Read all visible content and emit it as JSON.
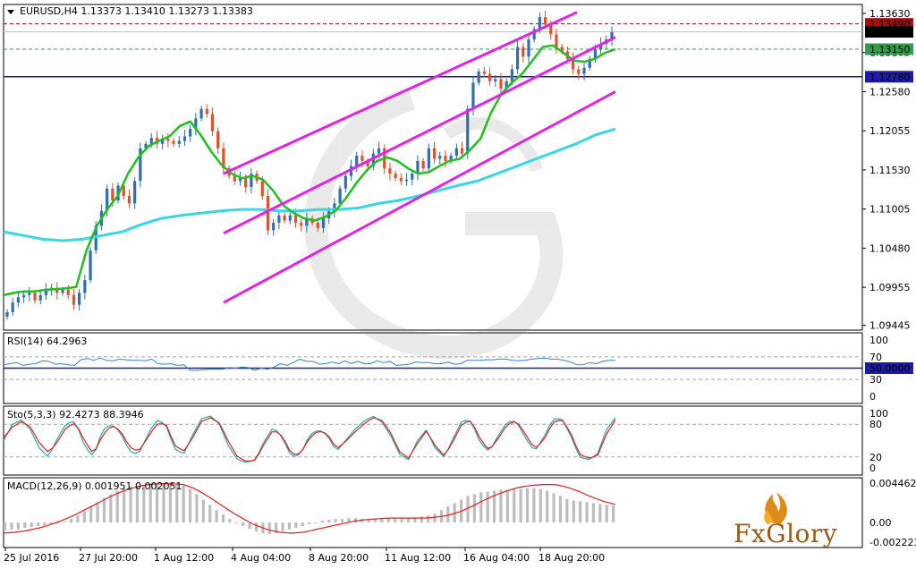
{
  "colors": {
    "background": "#ffffff",
    "frame": "#000000",
    "bull_candle": "#2f6fb0",
    "bear_candle": "#e0502a",
    "ma_fast": "#21c021",
    "ma_slow": "#3ad6e6",
    "channel": "#e025e0",
    "hline_support": "#1c1ca8",
    "hline_resistance": "#a01010",
    "hline_green": "#2e9e4e",
    "rsi_line": "#3a7fd8",
    "sto_main": "#2aa8a8",
    "sto_signal": "#e02020",
    "macd_hist": "#bdbdbd",
    "macd_signal": "#e02020",
    "logo_text": "#9a5a16"
  },
  "header": {
    "symbol_caption": "EURUSD,H4  1.13373 1.13410 1.13273 1.13383",
    "dropdown_icon": "triangle-down-icon"
  },
  "price_axis": {
    "ticks": [
      "1.13630",
      "1.13105",
      "1.12580",
      "1.12055",
      "1.11530",
      "1.11005",
      "1.10480",
      "1.09955",
      "1.09445"
    ],
    "tick_values": [
      1.1363,
      1.13105,
      1.1258,
      1.12055,
      1.1153,
      1.11005,
      1.1048,
      1.09955,
      1.09445
    ],
    "range": [
      1.0938,
      1.1375
    ],
    "tags": [
      {
        "text": "1.13490",
        "value": 1.1349,
        "color": "#a01010"
      },
      {
        "text": "1.13383",
        "value": 1.13383,
        "color": "#000000"
      },
      {
        "text": "1.13150",
        "value": 1.1315,
        "color": "#2e9e4e"
      },
      {
        "text": "1.12780",
        "value": 1.1278,
        "color": "#1c1ca8"
      }
    ]
  },
  "time_axis": {
    "labels": [
      "25 Jul 2016",
      "27 Jul 20:00",
      "1 Aug 12:00",
      "4 Aug 04:00",
      "8 Aug 20:00",
      "11 Aug 12:00",
      "16 Aug 04:00",
      "18 Aug 20:00"
    ]
  },
  "rsi": {
    "caption": "RSI(14) 64.2963",
    "axis_ticks": [
      "100",
      "70",
      "50.0000",
      "30",
      "0"
    ],
    "level_values": [
      100,
      70,
      50,
      30,
      0
    ]
  },
  "stochastic": {
    "caption": "Sto(5,3,3) 92.4273 88.3946",
    "axis_ticks": [
      "100",
      "80",
      "20",
      "0"
    ],
    "level_values": [
      100,
      80,
      20,
      0
    ]
  },
  "macd": {
    "caption": "MACD(12,26,9) 0.001951 0.002051",
    "axis_ticks": [
      "0.004462",
      "0.00",
      "-0.002223"
    ],
    "tick_values": [
      0.004462,
      0.0,
      -0.002223
    ]
  },
  "logo": {
    "text": "FxGlory",
    "icon": "flame-icon"
  },
  "chart_data": [
    {
      "type": "candlestick",
      "title": "EURUSD,H4",
      "ohlc_last": {
        "open": 1.13373,
        "high": 1.1341,
        "low": 1.13273,
        "close": 1.13383
      },
      "x_labels": [
        "25 Jul 2016",
        "27 Jul 20:00",
        "1 Aug 12:00",
        "4 Aug 04:00",
        "8 Aug 20:00",
        "11 Aug 12:00",
        "16 Aug 04:00",
        "18 Aug 20:00"
      ],
      "close_path": [
        1.0962,
        1.0975,
        1.0982,
        1.0985,
        1.0988,
        1.0978,
        1.0985,
        1.0992,
        1.0995,
        1.0988,
        1.0992,
        1.0985,
        1.0972,
        1.0988,
        1.1005,
        1.1045,
        1.1078,
        1.1098,
        1.1128,
        1.1112,
        1.1132,
        1.1118,
        1.1108,
        1.1138,
        1.1182,
        1.1188,
        1.1196,
        1.1188,
        1.1195,
        1.1192,
        1.1188,
        1.1192,
        1.1198,
        1.1208,
        1.1222,
        1.1235,
        1.1228,
        1.1205,
        1.1182,
        1.1155,
        1.1145,
        1.1138,
        1.1142,
        1.113,
        1.1148,
        1.1138,
        1.1118,
        1.1072,
        1.1082,
        1.1092,
        1.1085,
        1.1092,
        1.1082,
        1.1078,
        1.1088,
        1.1082,
        1.1075,
        1.1088,
        1.1098,
        1.1108,
        1.1128,
        1.1145,
        1.1158,
        1.1172,
        1.1165,
        1.1158,
        1.1175,
        1.1182,
        1.1155,
        1.1148,
        1.1142,
        1.1138,
        1.114,
        1.1148,
        1.1165,
        1.1155,
        1.1182,
        1.1168,
        1.1172,
        1.1165,
        1.1172,
        1.1182,
        1.1175,
        1.1235,
        1.127,
        1.1285,
        1.1282,
        1.1272,
        1.1275,
        1.1262,
        1.1272,
        1.1288,
        1.1318,
        1.1305,
        1.1328,
        1.1342,
        1.1358,
        1.1348,
        1.1335,
        1.1318,
        1.1312,
        1.1302,
        1.1288,
        1.1282,
        1.129,
        1.1302,
        1.1315,
        1.1322,
        1.1328,
        1.1338
      ],
      "series": [
        {
          "name": "MA fast",
          "values": [
            1.0985,
            1.0988,
            1.099,
            1.099,
            1.0992,
            1.0993,
            1.0994,
            1.0996,
            1.1045,
            1.1078,
            1.11,
            1.1118,
            1.1148,
            1.117,
            1.1185,
            1.1192,
            1.1198,
            1.1212,
            1.1218,
            1.12,
            1.1178,
            1.116,
            1.1148,
            1.1142,
            1.1145,
            1.114,
            1.1125,
            1.1105,
            1.1095,
            1.1088,
            1.1085,
            1.109,
            1.1098,
            1.1115,
            1.1135,
            1.1152,
            1.1165,
            1.117,
            1.1165,
            1.1155,
            1.1148,
            1.115,
            1.1158,
            1.1165,
            1.1168,
            1.118,
            1.1195,
            1.123,
            1.1255,
            1.127,
            1.1282,
            1.13,
            1.1318,
            1.132,
            1.131,
            1.13,
            1.1298,
            1.1302,
            1.131,
            1.1315
          ]
        },
        {
          "name": "MA slow",
          "values": [
            1.107,
            1.1065,
            1.106,
            1.1058,
            1.106,
            1.1065,
            1.107,
            1.108,
            1.1088,
            1.1092,
            1.1095,
            1.1098,
            1.11,
            1.11,
            1.1098,
            1.1098,
            1.11,
            1.11,
            1.1102,
            1.1108,
            1.1112,
            1.1118,
            1.1125,
            1.1132,
            1.1138,
            1.1148,
            1.1158,
            1.1168,
            1.1178,
            1.1188,
            1.12,
            1.1208
          ]
        }
      ],
      "channel": [
        {
          "name": "upper",
          "from": 1.1148,
          "to": 1.1388
        },
        {
          "name": "middle",
          "from": 1.1068,
          "to": 1.1331
        },
        {
          "name": "lower",
          "from": 1.0975,
          "to": 1.1258
        }
      ],
      "hlines": [
        1.1349,
        1.13383,
        1.1315,
        1.1278
      ]
    },
    {
      "type": "line",
      "title": "RSI(14) 64.2963",
      "ylim": [
        0,
        100
      ],
      "levels": [
        70,
        50,
        30
      ],
      "series": [
        {
          "name": "RSI(14)",
          "values": [
            56,
            58,
            60,
            55,
            57,
            58,
            63,
            62,
            57,
            58,
            56,
            55,
            65,
            67,
            64,
            68,
            64,
            63,
            66,
            65,
            64,
            64,
            63,
            66,
            58,
            57,
            58,
            55,
            56,
            46,
            46,
            47,
            48,
            48,
            48,
            51,
            50,
            52,
            51,
            46,
            50,
            48,
            52,
            58,
            55,
            60,
            66,
            62,
            62,
            57,
            58,
            61,
            58,
            63,
            58,
            62,
            58,
            58,
            63,
            60,
            62,
            55,
            56,
            57,
            61,
            60,
            60,
            58,
            58,
            61,
            57,
            58,
            64,
            64,
            64,
            65,
            65,
            66,
            66,
            64,
            63,
            64,
            66,
            67,
            68,
            66,
            66,
            64,
            61,
            56,
            56,
            60,
            58,
            62,
            64,
            64
          ]
        }
      ]
    },
    {
      "type": "line",
      "title": "Sto(5,3,3) 92.4273 88.3946",
      "ylim": [
        0,
        100
      ],
      "levels": [
        80,
        20
      ],
      "series": [
        {
          "name": "main",
          "values": [
            50,
            80,
            88,
            70,
            35,
            20,
            55,
            82,
            85,
            40,
            20,
            70,
            80,
            65,
            30,
            25,
            60,
            88,
            80,
            35,
            25,
            60,
            90,
            95,
            80,
            40,
            15,
            10,
            15,
            50,
            75,
            55,
            20,
            25,
            60,
            70,
            60,
            30,
            50,
            70,
            85,
            95,
            85,
            60,
            25,
            15,
            50,
            70,
            35,
            20,
            55,
            88,
            85,
            45,
            30,
            60,
            85,
            85,
            55,
            30,
            55,
            88,
            92,
            60,
            20,
            15,
            25,
            70,
            92
          ]
        },
        {
          "name": "signal",
          "values": [
            55,
            75,
            85,
            75,
            45,
            28,
            48,
            75,
            82,
            50,
            25,
            60,
            78,
            68,
            38,
            30,
            55,
            80,
            82,
            42,
            30,
            55,
            85,
            92,
            82,
            48,
            20,
            12,
            14,
            45,
            70,
            58,
            25,
            26,
            55,
            68,
            62,
            35,
            48,
            65,
            80,
            92,
            88,
            65,
            30,
            18,
            45,
            68,
            40,
            22,
            50,
            82,
            86,
            52,
            32,
            55,
            80,
            86,
            62,
            35,
            50,
            82,
            90,
            65,
            25,
            18,
            22,
            62,
            88
          ]
        }
      ]
    },
    {
      "type": "bar",
      "title": "MACD(12,26,9) 0.001951 0.002051",
      "ylim": [
        -0.002223,
        0.004462
      ],
      "series": [
        {
          "name": "histogram",
          "values": [
            -0.0009,
            -0.0008,
            -0.0008,
            -0.0006,
            -0.0005,
            -0.0004,
            -0.0003,
            -0.0002,
            -0.0001,
            0.0001,
            0.0004,
            0.0008,
            0.0013,
            0.0018,
            0.0023,
            0.0028,
            0.0032,
            0.0036,
            0.0039,
            0.0041,
            0.0042,
            0.0043,
            0.0044,
            0.0044,
            0.0044,
            0.0044,
            0.0043,
            0.0042,
            0.0038,
            0.0032,
            0.0026,
            0.002,
            0.0014,
            0.0009,
            0.0004,
            0.0,
            -0.0004,
            -0.0007,
            -0.001,
            -0.0012,
            -0.0013,
            -0.0012,
            -0.001,
            -0.0008,
            -0.0006,
            -0.0004,
            -0.0002,
            0.0,
            0.0002,
            0.0003,
            0.0004,
            0.0004,
            0.0005,
            0.0005,
            0.0004,
            0.0004,
            0.0004,
            0.0004,
            0.0005,
            0.0005,
            0.0005,
            0.0005,
            0.0006,
            0.0007,
            0.0008,
            0.001,
            0.0014,
            0.0018,
            0.0022,
            0.0026,
            0.003,
            0.0032,
            0.0034,
            0.0035,
            0.0036,
            0.0037,
            0.0037,
            0.0038,
            0.0038,
            0.0039,
            0.0039,
            0.0038,
            0.0036,
            0.0033,
            0.003,
            0.0027,
            0.0025,
            0.0024,
            0.0023,
            0.0022,
            0.0021,
            0.002,
            0.00195
          ]
        },
        {
          "name": "signal",
          "values": [
            -0.0012,
            -0.0011,
            -0.0009,
            -0.0006,
            -0.0002,
            0.0003,
            0.0009,
            0.0016,
            0.0023,
            0.003,
            0.0036,
            0.004,
            0.0043,
            0.0044,
            0.0044,
            0.0043,
            0.0038,
            0.003,
            0.0021,
            0.0012,
            0.0004,
            -0.0003,
            -0.0008,
            -0.0011,
            -0.0012,
            -0.0011,
            -0.0008,
            -0.0005,
            -0.0002,
            0.0001,
            0.0003,
            0.0004,
            0.0005,
            0.0005,
            0.0005,
            0.0005,
            0.0006,
            0.0008,
            0.0012,
            0.0018,
            0.0025,
            0.0031,
            0.0036,
            0.004,
            0.0042,
            0.0043,
            0.0043,
            0.004,
            0.0035,
            0.0029,
            0.0024,
            0.00205
          ]
        }
      ]
    }
  ]
}
